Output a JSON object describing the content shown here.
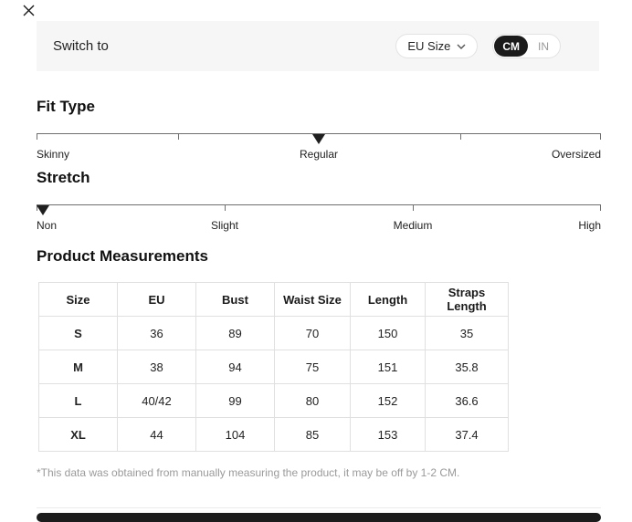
{
  "header": {
    "close_icon": "x",
    "switch_label": "Switch to",
    "size_system_dropdown": {
      "value": "EU Size"
    },
    "unit_toggle": {
      "options": [
        "CM",
        "IN"
      ],
      "selected": "CM"
    }
  },
  "fit_type": {
    "title": "Fit Type",
    "labels": [
      "Skinny",
      "Regular",
      "Oversized"
    ],
    "selected": "Regular",
    "marker_position_pct": 50,
    "tick_positions_pct": [
      0,
      25,
      50,
      75,
      100
    ]
  },
  "stretch": {
    "title": "Stretch",
    "labels": [
      "Non",
      "Slight",
      "Medium",
      "High"
    ],
    "selected": "Non",
    "marker_position_pct": 0,
    "tick_positions_pct": [
      0,
      33.3,
      66.7,
      100
    ]
  },
  "measurements": {
    "title": "Product Measurements",
    "columns": [
      "Size",
      "EU",
      "Bust",
      "Waist Size",
      "Length",
      "Straps Length"
    ],
    "rows": [
      [
        "S",
        "36",
        "89",
        "70",
        "150",
        "35"
      ],
      [
        "M",
        "38",
        "94",
        "75",
        "151",
        "35.8"
      ],
      [
        "L",
        "40/42",
        "99",
        "80",
        "152",
        "36.6"
      ],
      [
        "XL",
        "44",
        "104",
        "85",
        "153",
        "37.4"
      ]
    ],
    "unit": "CM"
  },
  "footnote": "*This data was obtained from manually measuring the product, it may be off by 1-2 CM.",
  "colors": {
    "bar_background": "#f6f6f6",
    "selected_unit_background": "#1b1b1b",
    "selected_unit_text": "#ffffff",
    "table_border": "#e0e0e0",
    "muted_text": "#9a9a9a",
    "scale_line": "#6f6f6f",
    "marker": "#1f1f1f"
  }
}
